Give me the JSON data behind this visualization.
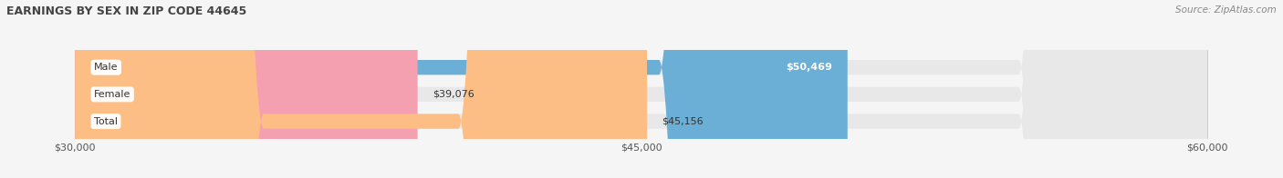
{
  "title": "EARNINGS BY SEX IN ZIP CODE 44645",
  "source": "Source: ZipAtlas.com",
  "categories": [
    "Male",
    "Female",
    "Total"
  ],
  "values": [
    50469,
    39076,
    45156
  ],
  "bar_colors": [
    "#6BAED6",
    "#F4A0B0",
    "#FDBE85"
  ],
  "track_color": "#E8E8E8",
  "xmin": 30000,
  "xmax": 60000,
  "xticks": [
    30000,
    45000,
    60000
  ],
  "xtick_labels": [
    "$30,000",
    "$45,000",
    "$60,000"
  ],
  "bar_height": 0.55,
  "background_color": "#F5F5F5",
  "title_fontsize": 9,
  "label_fontsize": 8,
  "value_fontsize": 8,
  "source_fontsize": 7.5
}
